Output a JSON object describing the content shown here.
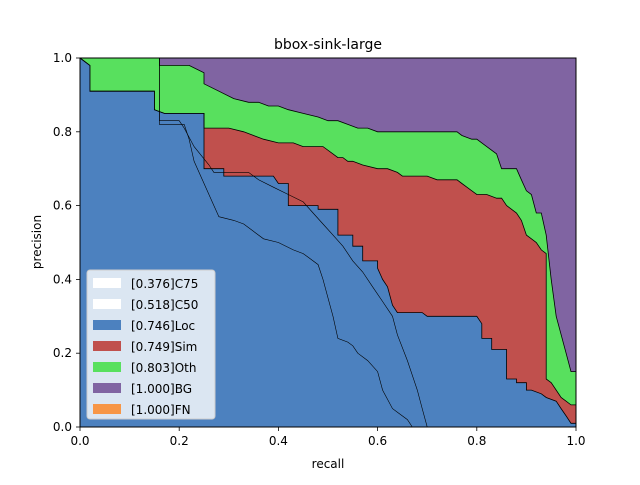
{
  "chart_data": {
    "type": "area",
    "title": "bbox-sink-large",
    "xlabel": "recall",
    "ylabel": "precision",
    "xlim": [
      0.0,
      1.0
    ],
    "ylim": [
      0.0,
      1.0
    ],
    "xticks": [
      0.0,
      0.2,
      0.4,
      0.6,
      0.8,
      1.0
    ],
    "xtick_labels": [
      "0.0",
      "0.2",
      "0.4",
      "0.6",
      "0.8",
      "1.0"
    ],
    "yticks": [
      0.0,
      0.2,
      0.4,
      0.6,
      0.8,
      1.0
    ],
    "ytick_labels": [
      "0.0",
      "0.2",
      "0.4",
      "0.6",
      "0.8",
      "1.0"
    ],
    "grid": false,
    "legend_position": "lower-left",
    "series": [
      {
        "name": "C75",
        "ap": "0.376",
        "label": "[0.376]C75",
        "color": "#ffffff",
        "x": [
          0.0,
          0.16,
          0.16,
          0.21,
          0.22,
          0.23,
          0.27,
          0.28,
          0.31,
          0.33,
          0.35,
          0.37,
          0.4,
          0.43,
          0.45,
          0.46,
          0.48,
          0.49,
          0.5,
          0.51,
          0.52,
          0.54,
          0.55,
          0.56,
          0.58,
          0.6,
          0.61,
          0.63,
          0.64,
          0.66,
          0.67,
          1.0
        ],
        "y": [
          1.0,
          1.0,
          0.82,
          0.82,
          0.78,
          0.72,
          0.6,
          0.57,
          0.56,
          0.55,
          0.53,
          0.51,
          0.5,
          0.48,
          0.47,
          0.46,
          0.44,
          0.4,
          0.35,
          0.3,
          0.24,
          0.23,
          0.22,
          0.2,
          0.18,
          0.15,
          0.1,
          0.05,
          0.04,
          0.02,
          0.0,
          0.0
        ]
      },
      {
        "name": "C50",
        "ap": "0.518",
        "label": "[0.518]C50",
        "color": "#ffffff",
        "x": [
          0.0,
          0.16,
          0.16,
          0.2,
          0.21,
          0.23,
          0.26,
          0.27,
          0.29,
          0.34,
          0.36,
          0.39,
          0.42,
          0.45,
          0.47,
          0.49,
          0.51,
          0.53,
          0.55,
          0.57,
          0.59,
          0.61,
          0.63,
          0.64,
          0.66,
          0.68,
          0.69,
          0.7,
          1.0
        ],
        "y": [
          1.0,
          1.0,
          0.83,
          0.83,
          0.81,
          0.76,
          0.71,
          0.69,
          0.69,
          0.69,
          0.67,
          0.65,
          0.63,
          0.61,
          0.58,
          0.55,
          0.52,
          0.49,
          0.45,
          0.42,
          0.38,
          0.34,
          0.3,
          0.25,
          0.18,
          0.1,
          0.05,
          0.0,
          0.0
        ]
      },
      {
        "name": "Loc",
        "ap": "0.746",
        "label": "[0.746]Loc",
        "color": "#4C81BF",
        "x": [
          0.0,
          0.02,
          0.02,
          0.15,
          0.15,
          0.17,
          0.25,
          0.25,
          0.29,
          0.29,
          0.34,
          0.39,
          0.4,
          0.42,
          0.42,
          0.48,
          0.48,
          0.52,
          0.52,
          0.55,
          0.55,
          0.57,
          0.57,
          0.6,
          0.6,
          0.61,
          0.62,
          0.63,
          0.64,
          0.65,
          0.65,
          0.69,
          0.7,
          0.71,
          0.8,
          0.81,
          0.81,
          0.83,
          0.83,
          0.86,
          0.86,
          0.88,
          0.88,
          0.9,
          0.9,
          0.91,
          0.93,
          0.94,
          0.96,
          0.97,
          0.98,
          0.99,
          1.0
        ],
        "y": [
          1.0,
          0.98,
          0.91,
          0.91,
          0.86,
          0.85,
          0.85,
          0.7,
          0.7,
          0.68,
          0.68,
          0.68,
          0.66,
          0.66,
          0.6,
          0.6,
          0.59,
          0.59,
          0.52,
          0.52,
          0.49,
          0.49,
          0.45,
          0.45,
          0.43,
          0.4,
          0.38,
          0.33,
          0.31,
          0.31,
          0.31,
          0.31,
          0.3,
          0.3,
          0.3,
          0.28,
          0.24,
          0.24,
          0.21,
          0.21,
          0.13,
          0.13,
          0.12,
          0.12,
          0.1,
          0.1,
          0.09,
          0.08,
          0.07,
          0.05,
          0.03,
          0.01,
          0.01
        ]
      },
      {
        "name": "Sim",
        "ap": "0.749",
        "label": "[0.749]Sim",
        "color": "#C0504D",
        "x": [
          0.0,
          0.02,
          0.02,
          0.15,
          0.15,
          0.17,
          0.25,
          0.25,
          0.28,
          0.3,
          0.33,
          0.35,
          0.37,
          0.4,
          0.43,
          0.45,
          0.47,
          0.49,
          0.51,
          0.52,
          0.53,
          0.54,
          0.55,
          0.57,
          0.6,
          0.62,
          0.64,
          0.65,
          0.7,
          0.72,
          0.75,
          0.76,
          0.77,
          0.77,
          0.78,
          0.79,
          0.8,
          0.82,
          0.84,
          0.85,
          0.86,
          0.88,
          0.89,
          0.9,
          0.91,
          0.92,
          0.93,
          0.94,
          0.94,
          0.95,
          0.96,
          0.97,
          0.98,
          0.99,
          1.0
        ],
        "y": [
          1.0,
          0.98,
          0.91,
          0.91,
          0.86,
          0.85,
          0.85,
          0.81,
          0.81,
          0.81,
          0.8,
          0.79,
          0.78,
          0.77,
          0.77,
          0.76,
          0.76,
          0.76,
          0.74,
          0.73,
          0.73,
          0.72,
          0.72,
          0.71,
          0.7,
          0.7,
          0.69,
          0.68,
          0.68,
          0.67,
          0.67,
          0.67,
          0.66,
          0.66,
          0.65,
          0.64,
          0.63,
          0.63,
          0.62,
          0.62,
          0.6,
          0.58,
          0.56,
          0.52,
          0.51,
          0.5,
          0.48,
          0.47,
          0.13,
          0.12,
          0.1,
          0.08,
          0.07,
          0.06,
          0.06
        ]
      },
      {
        "name": "Oth",
        "ap": "0.803",
        "label": "[0.803]Oth",
        "color": "#58E05E",
        "x": [
          0.0,
          0.16,
          0.16,
          0.21,
          0.22,
          0.25,
          0.25,
          0.28,
          0.31,
          0.34,
          0.36,
          0.38,
          0.4,
          0.42,
          0.45,
          0.48,
          0.5,
          0.52,
          0.54,
          0.56,
          0.58,
          0.6,
          0.62,
          0.64,
          0.66,
          0.68,
          0.7,
          0.72,
          0.74,
          0.76,
          0.77,
          0.79,
          0.8,
          0.82,
          0.84,
          0.85,
          0.88,
          0.89,
          0.9,
          0.91,
          0.92,
          0.93,
          0.94,
          0.95,
          0.96,
          0.98,
          0.99,
          1.0
        ],
        "y": [
          1.0,
          1.0,
          0.98,
          0.98,
          0.98,
          0.96,
          0.93,
          0.91,
          0.89,
          0.88,
          0.88,
          0.87,
          0.87,
          0.86,
          0.85,
          0.84,
          0.83,
          0.83,
          0.82,
          0.81,
          0.81,
          0.8,
          0.8,
          0.8,
          0.8,
          0.8,
          0.8,
          0.8,
          0.8,
          0.8,
          0.79,
          0.78,
          0.78,
          0.76,
          0.74,
          0.7,
          0.7,
          0.67,
          0.64,
          0.63,
          0.58,
          0.58,
          0.52,
          0.4,
          0.3,
          0.2,
          0.15,
          0.15
        ]
      },
      {
        "name": "BG",
        "ap": "1.000",
        "label": "[1.000]BG",
        "color": "#8064A2",
        "x": [
          0.0,
          1.0
        ],
        "y": [
          1.0,
          1.0
        ]
      },
      {
        "name": "FN",
        "ap": "1.000",
        "label": "[1.000]FN",
        "color": "#F79646",
        "x": [
          0.0,
          1.0
        ],
        "y": [
          1.0,
          1.0
        ]
      }
    ]
  }
}
